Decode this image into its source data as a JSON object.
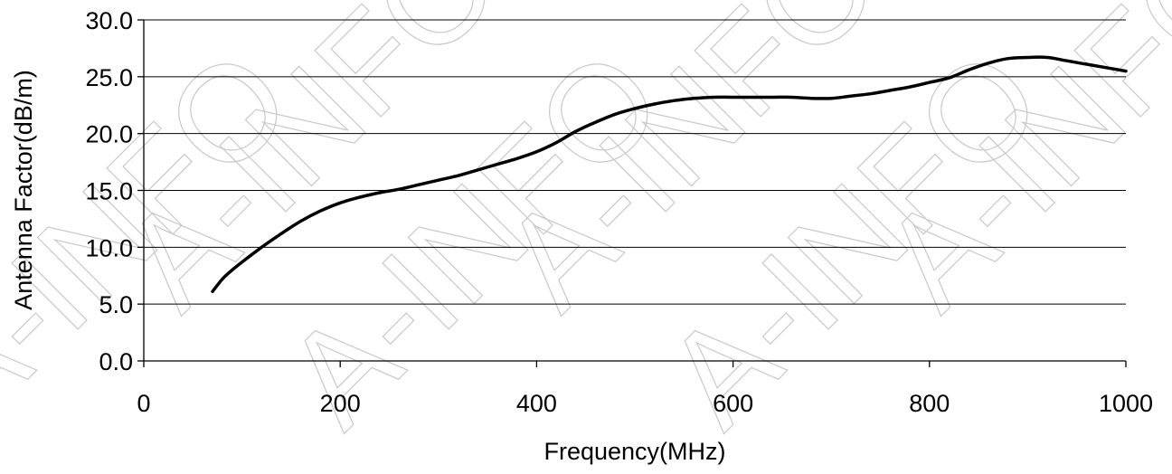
{
  "chart_data": {
    "type": "line",
    "title": "",
    "xlabel": "Frequency(MHz)",
    "ylabel": "Antenna Factor(dB/m)",
    "xlim": [
      0,
      1000
    ],
    "ylim": [
      0,
      30
    ],
    "x_ticks": [
      0,
      200,
      400,
      600,
      800,
      1000
    ],
    "x_tick_labels": [
      "0",
      "200",
      "400",
      "600",
      "800",
      "1000"
    ],
    "y_ticks": [
      0,
      5,
      10,
      15,
      20,
      25,
      30
    ],
    "y_tick_labels": [
      "0.0",
      "5.0",
      "10.0",
      "15.0",
      "20.0",
      "25.0",
      "30.0"
    ],
    "grid": "horizontal",
    "legend": "none",
    "series": [
      {
        "color": "#000000",
        "x": [
          70,
          80,
          90,
          100,
          120,
          140,
          160,
          180,
          200,
          220,
          240,
          260,
          280,
          300,
          320,
          340,
          360,
          380,
          400,
          420,
          440,
          460,
          480,
          500,
          520,
          540,
          560,
          580,
          600,
          620,
          640,
          660,
          680,
          700,
          720,
          740,
          760,
          780,
          800,
          820,
          840,
          860,
          880,
          900,
          920,
          940,
          960,
          980,
          1000
        ],
        "y": [
          6.1,
          7.2,
          8.0,
          8.7,
          10.0,
          11.2,
          12.3,
          13.2,
          13.9,
          14.4,
          14.8,
          15.1,
          15.5,
          15.9,
          16.3,
          16.8,
          17.3,
          17.8,
          18.4,
          19.2,
          20.2,
          21.0,
          21.7,
          22.2,
          22.6,
          22.9,
          23.1,
          23.2,
          23.2,
          23.2,
          23.2,
          23.2,
          23.1,
          23.1,
          23.3,
          23.5,
          23.8,
          24.1,
          24.5,
          24.9,
          25.6,
          26.2,
          26.6,
          26.7,
          26.7,
          26.4,
          26.1,
          25.8,
          25.5
        ]
      }
    ]
  },
  "watermark": {
    "text": "A-INFO",
    "color": "#c8c8c8"
  }
}
